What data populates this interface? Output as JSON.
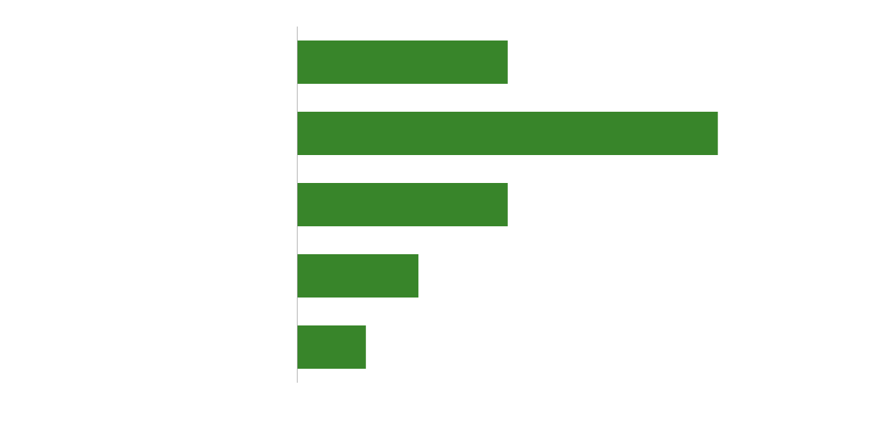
{
  "chart_data": {
    "type": "bar",
    "orientation": "horizontal",
    "categories": [
      "",
      "",
      "",
      "",
      ""
    ],
    "values": [
      40,
      80,
      40,
      23,
      13
    ],
    "xlim": [
      0,
      100
    ],
    "grid": false,
    "legend": "none",
    "bar_color": "#38852a",
    "axis_color": "#b0b0b0"
  }
}
